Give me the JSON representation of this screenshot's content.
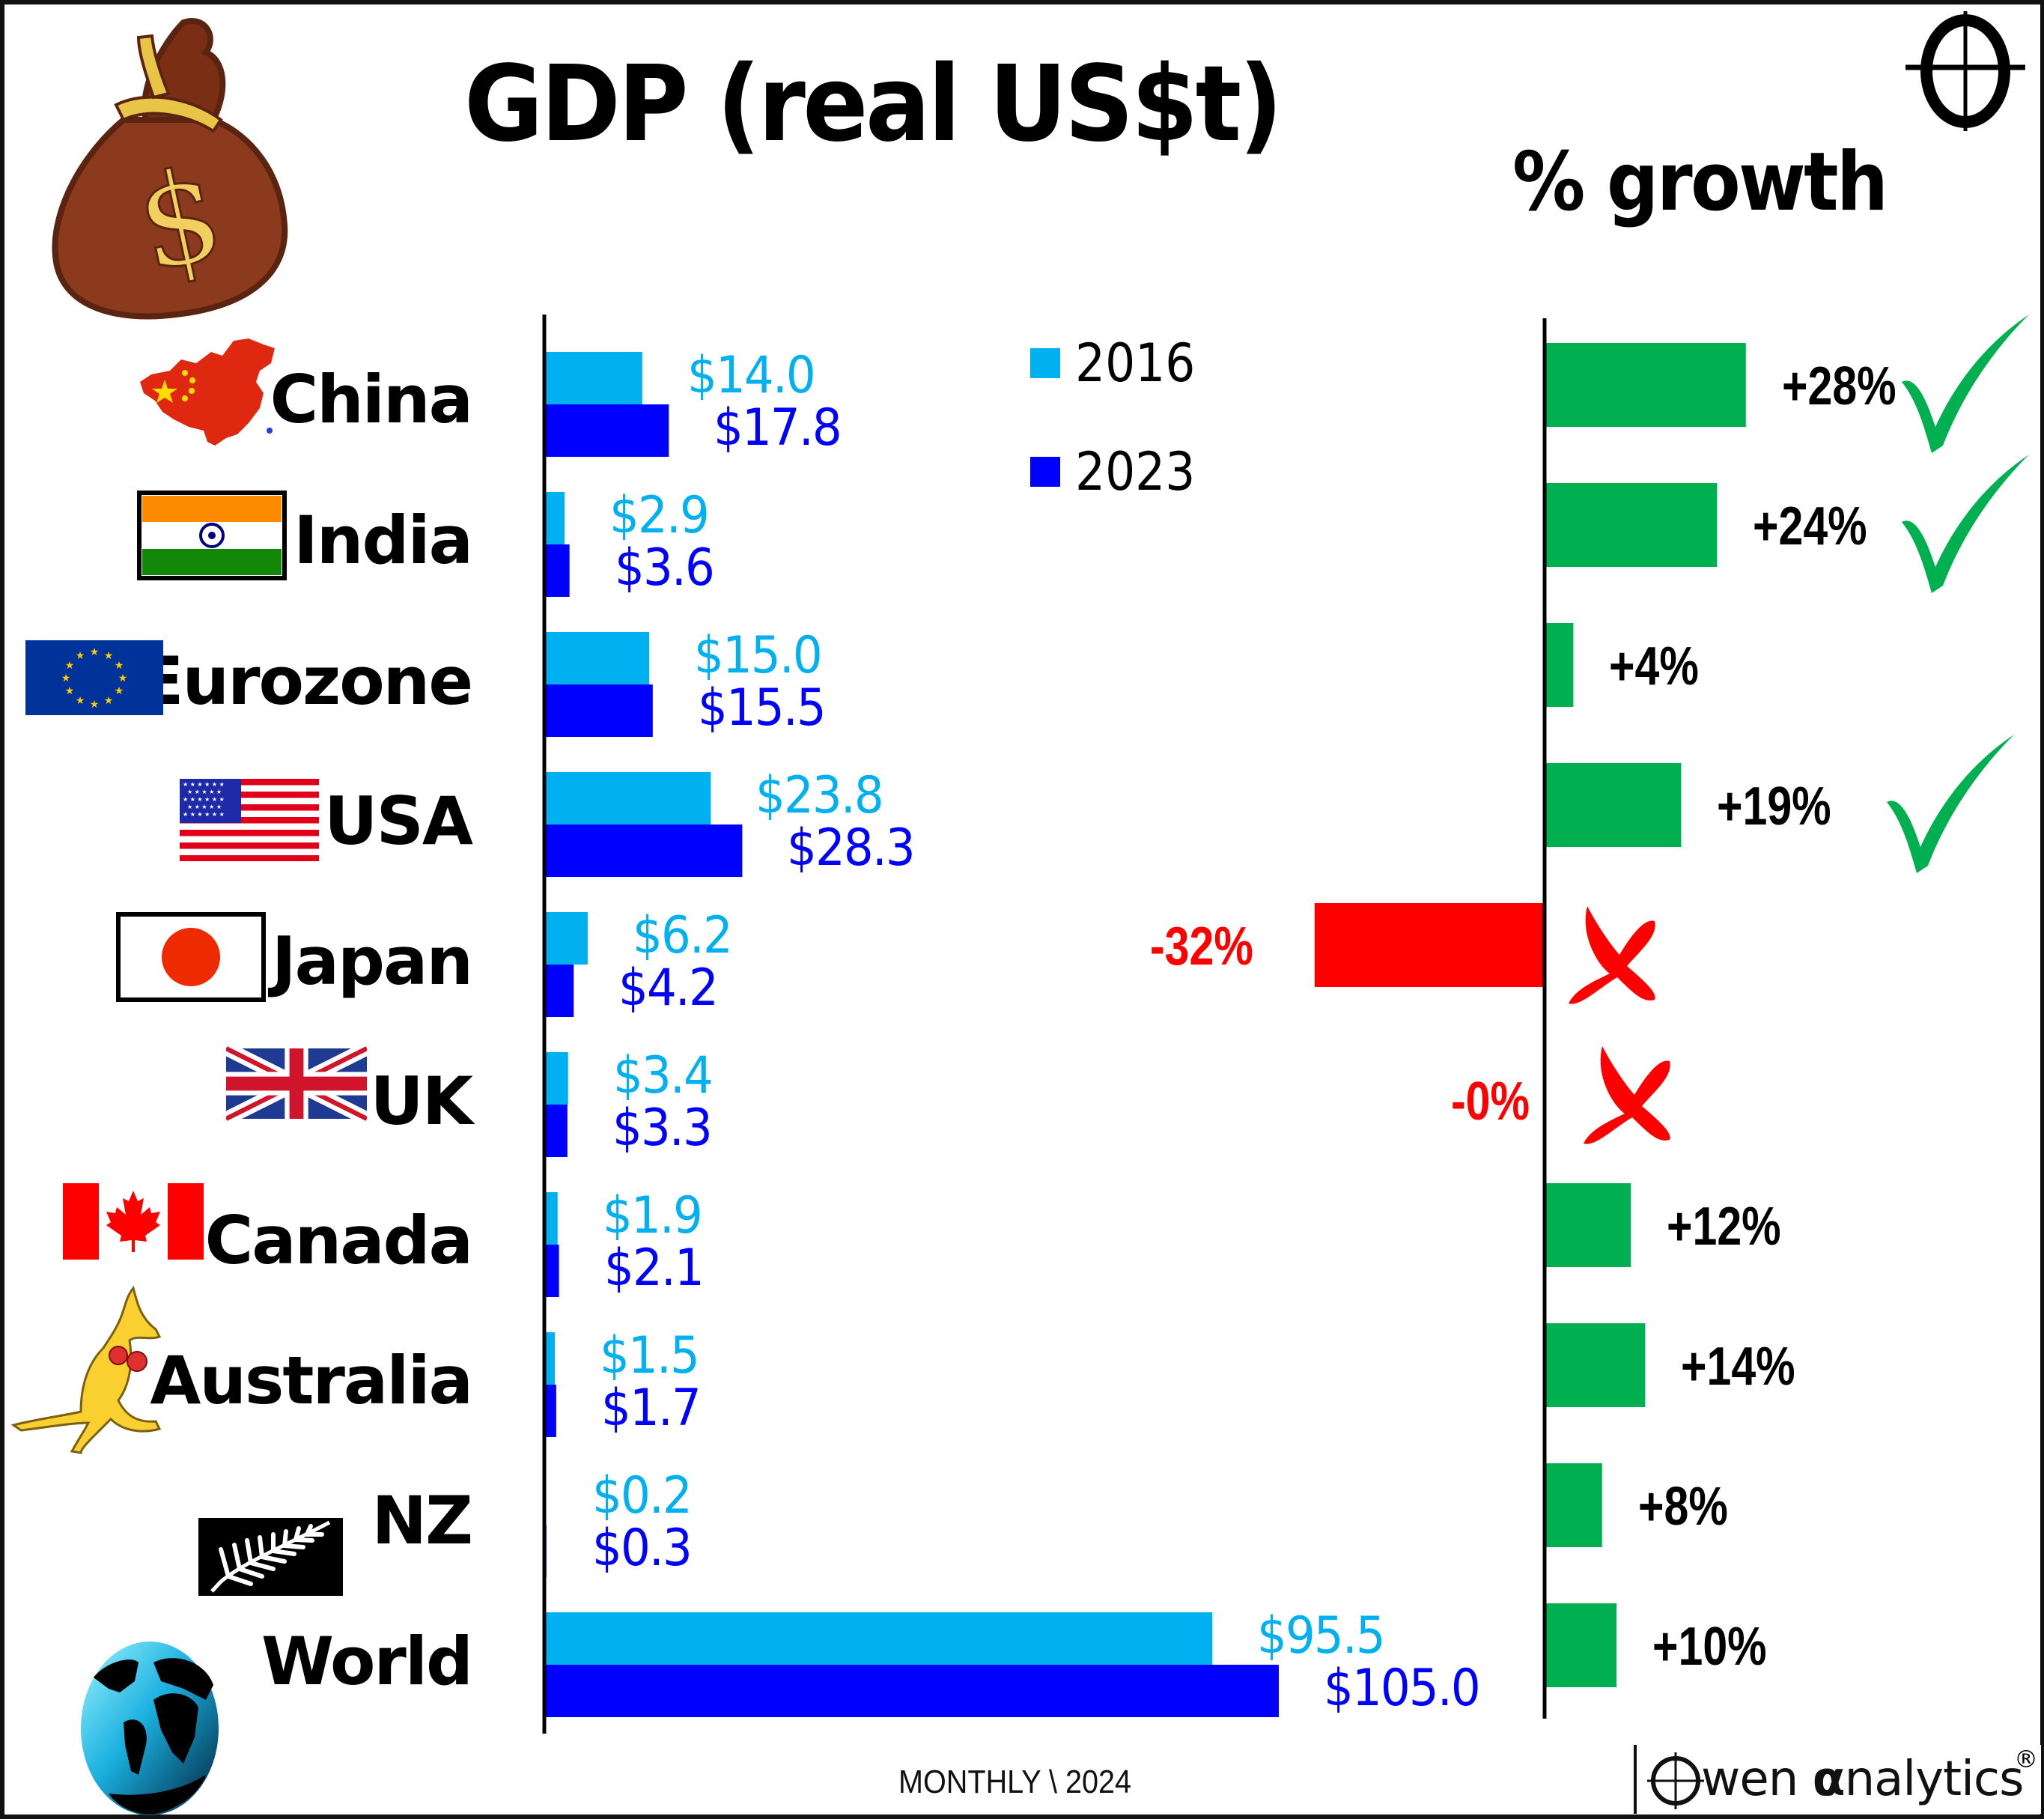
{
  "header": {
    "title": "GDP (real US$t)",
    "growth_title": "% growth"
  },
  "legend": [
    {
      "label": "2016",
      "color": "#00B0F0"
    },
    {
      "label": "2023",
      "color": "#0000FF"
    }
  ],
  "colors": {
    "series_2016": "#00B0F0",
    "series_2023": "#0000FF",
    "growth_positive": "#00B050",
    "growth_negative": "#FF0000",
    "axis": "#000000"
  },
  "footer": {
    "source": "MONTHLY \\ 2024",
    "brand_prefix": "wen ",
    "brand_alpha": "α",
    "brand_suffix": "nalytics",
    "brand_reg": "®"
  },
  "chart_data": [
    {
      "type": "bar",
      "orientation": "horizontal",
      "title": "GDP (real US$t)",
      "xlabel": "",
      "ylabel": "",
      "categories": [
        "China",
        "India",
        "Eurozone",
        "USA",
        "Japan",
        "UK",
        "Canada",
        "Australia",
        "NZ",
        "World"
      ],
      "series": [
        {
          "name": "2016",
          "values": [
            14.0,
            2.9,
            15.0,
            23.8,
            6.2,
            3.4,
            1.9,
            1.5,
            0.2,
            95.5
          ],
          "labels": [
            "$14.0",
            "$2.9",
            "$15.0",
            "$23.8",
            "$6.2",
            "$3.4",
            "$1.9",
            "$1.5",
            "$0.2",
            "$95.5"
          ]
        },
        {
          "name": "2023",
          "values": [
            17.8,
            3.6,
            15.5,
            28.3,
            4.2,
            3.3,
            2.1,
            1.7,
            0.3,
            105.0
          ],
          "labels": [
            "$17.8",
            "$3.6",
            "$15.5",
            "$28.3",
            "$4.2",
            "$3.3",
            "$2.1",
            "$1.7",
            "$0.3",
            "$105.0"
          ]
        }
      ],
      "xlim": [
        0,
        105
      ],
      "grid": false,
      "legend_position": "top-center"
    },
    {
      "type": "bar",
      "orientation": "horizontal",
      "title": "% growth",
      "categories": [
        "China",
        "India",
        "Eurozone",
        "USA",
        "Japan",
        "UK",
        "Canada",
        "Australia",
        "NZ",
        "World"
      ],
      "values": [
        28,
        24,
        4,
        19,
        -32,
        0,
        12,
        14,
        8,
        10
      ],
      "labels": [
        "+28%",
        "+24%",
        "+4%",
        "+19%",
        "-32%",
        "-0%",
        "+12%",
        "+14%",
        "+8%",
        "+10%"
      ],
      "markers": [
        "check",
        "check",
        "none",
        "check",
        "cross",
        "cross",
        "none",
        "none",
        "none",
        "none"
      ],
      "xlim": [
        -32,
        28
      ],
      "grid": false
    }
  ],
  "countries": [
    {
      "name": "China",
      "icon": "china-map-icon"
    },
    {
      "name": "India",
      "icon": "india-flag-icon"
    },
    {
      "name": "Eurozone",
      "icon": "eu-flag-icon"
    },
    {
      "name": "USA",
      "icon": "usa-flag-icon"
    },
    {
      "name": "Japan",
      "icon": "japan-flag-icon"
    },
    {
      "name": "UK",
      "icon": "uk-flag-icon"
    },
    {
      "name": "Canada",
      "icon": "canada-flag-icon"
    },
    {
      "name": "Australia",
      "icon": "kangaroo-icon"
    },
    {
      "name": "NZ",
      "icon": "nz-fern-flag-icon"
    },
    {
      "name": "World",
      "icon": "globe-icon"
    }
  ]
}
